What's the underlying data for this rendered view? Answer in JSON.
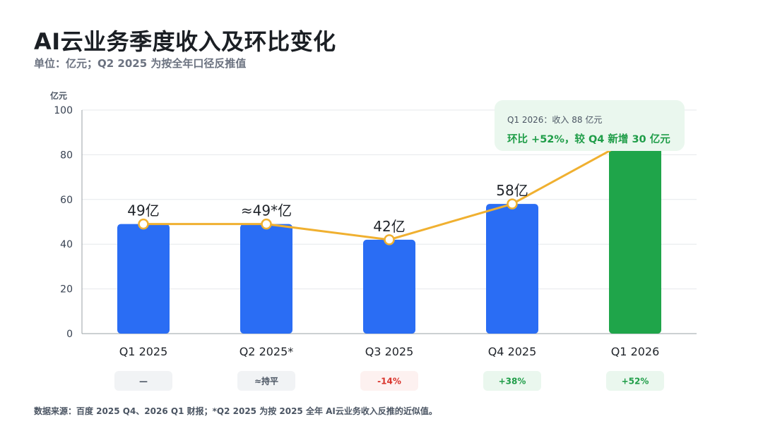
{
  "title": "AI云业务季度收入及环比变化",
  "subtitle": "单位：亿元；Q2 2025 为按全年口径反推值",
  "source_note": "数据来源：百度 2025 Q4、2026 Q1 财报；*Q2 2025 为按 2025 全年 AI云业务收入反推的近似值。",
  "chart_data": {
    "type": "bar",
    "y_unit_label": "亿元",
    "ylim": [
      0,
      100
    ],
    "yticks": [
      0,
      20,
      40,
      60,
      80,
      100
    ],
    "grid": true,
    "categories": [
      "Q1 2025",
      "Q2 2025*",
      "Q3 2025",
      "Q4 2025",
      "Q1 2026"
    ],
    "values": [
      49,
      49,
      42,
      58,
      88
    ],
    "data_labels": [
      "49亿",
      "≈49*亿",
      "42亿",
      "58亿",
      ""
    ],
    "bar_colors": [
      "#2a6df4",
      "#2a6df4",
      "#2a6df4",
      "#2a6df4",
      "#1fa54a"
    ],
    "line_color": "#f0b030",
    "qoq_badges": [
      {
        "label": "—",
        "color": "#4b5563",
        "bg": "#f1f3f5"
      },
      {
        "label": "≈持平",
        "color": "#4b5563",
        "bg": "#f1f3f5"
      },
      {
        "label": "-14%",
        "color": "#d9342b",
        "bg": "#fdf1f0"
      },
      {
        "label": "+38%",
        "color": "#1f9d48",
        "bg": "#eaf7ee"
      },
      {
        "label": "+52%",
        "color": "#1f9d48",
        "bg": "#eaf7ee"
      }
    ],
    "annotation": {
      "line1": "Q1 2026：收入 88 亿元",
      "line2": "环比 +52%，较 Q4 新增 30 亿元"
    }
  }
}
